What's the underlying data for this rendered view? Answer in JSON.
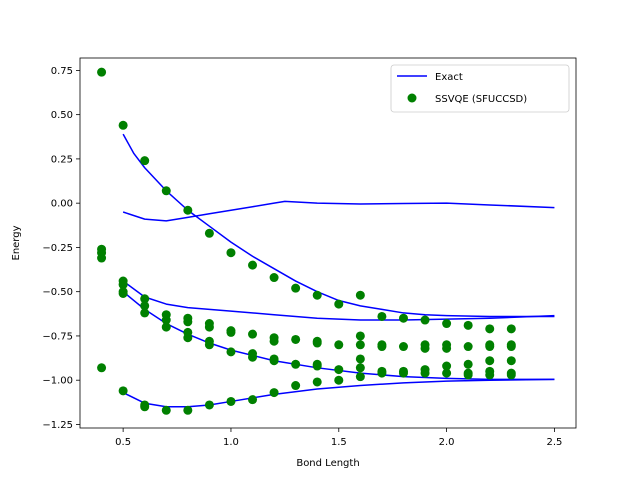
{
  "chart_data": {
    "type": "scatter",
    "xlabel": "Bond Length",
    "ylabel": "Energy",
    "xlim": [
      0.3,
      2.6
    ],
    "ylim": [
      -1.27,
      0.82
    ],
    "xticks": [
      0.5,
      1.0,
      1.5,
      2.0,
      2.5
    ],
    "xtick_labels": [
      "0.5",
      "1.0",
      "1.5",
      "2.0",
      "2.5"
    ],
    "yticks": [
      0.75,
      0.5,
      0.25,
      0.0,
      -0.25,
      -0.5,
      -0.75,
      -1.0,
      -1.25
    ],
    "ytick_labels": [
      "0.75",
      "0.50",
      "0.25",
      "0.00",
      "−0.25",
      "−0.50",
      "−0.75",
      "−1.00",
      "−1.25"
    ],
    "grid": false,
    "legend": {
      "placement": "top-right",
      "entries": [
        {
          "label": "Exact",
          "kind": "line",
          "color": "#0000ff"
        },
        {
          "label": "SSVQE (SFUCCSD)",
          "kind": "marker",
          "color": "#008000"
        }
      ]
    },
    "series": [
      {
        "name": "Exact",
        "kind": "line",
        "color": "#0000ff",
        "curves": [
          [
            [
              0.5,
              0.39
            ],
            [
              0.55,
              0.28
            ],
            [
              0.6,
              0.2
            ],
            [
              0.7,
              0.07
            ],
            [
              0.8,
              -0.04
            ],
            [
              0.9,
              -0.13
            ],
            [
              1.0,
              -0.22
            ],
            [
              1.1,
              -0.3
            ],
            [
              1.2,
              -0.37
            ],
            [
              1.3,
              -0.44
            ],
            [
              1.4,
              -0.5
            ],
            [
              1.5,
              -0.55
            ],
            [
              1.6,
              -0.58
            ],
            [
              1.7,
              -0.6
            ],
            [
              1.8,
              -0.62
            ],
            [
              1.9,
              -0.63
            ],
            [
              2.0,
              -0.635
            ],
            [
              2.2,
              -0.64
            ],
            [
              2.5,
              -0.64
            ]
          ],
          [
            [
              0.5,
              -0.05
            ],
            [
              0.6,
              -0.09
            ],
            [
              0.7,
              -0.1
            ],
            [
              0.8,
              -0.08
            ],
            [
              0.9,
              -0.06
            ],
            [
              1.0,
              -0.04
            ],
            [
              1.1,
              -0.02
            ],
            [
              1.2,
              0.0
            ],
            [
              1.25,
              0.01
            ],
            [
              1.4,
              0.0
            ],
            [
              1.6,
              -0.005
            ],
            [
              1.8,
              -0.002
            ],
            [
              2.0,
              0.0
            ],
            [
              2.2,
              -0.01
            ],
            [
              2.5,
              -0.025
            ]
          ],
          [
            [
              0.5,
              -0.44
            ],
            [
              0.6,
              -0.53
            ],
            [
              0.7,
              -0.57
            ],
            [
              0.8,
              -0.59
            ],
            [
              0.9,
              -0.6
            ],
            [
              1.0,
              -0.61
            ],
            [
              1.2,
              -0.63
            ],
            [
              1.4,
              -0.65
            ],
            [
              1.6,
              -0.66
            ],
            [
              1.8,
              -0.66
            ],
            [
              2.0,
              -0.655
            ],
            [
              2.2,
              -0.65
            ],
            [
              2.5,
              -0.635
            ]
          ],
          [
            [
              0.5,
              -0.5
            ],
            [
              0.55,
              -0.55
            ],
            [
              0.6,
              -0.6
            ],
            [
              0.7,
              -0.68
            ],
            [
              0.8,
              -0.74
            ],
            [
              0.9,
              -0.79
            ],
            [
              1.0,
              -0.83
            ],
            [
              1.2,
              -0.89
            ],
            [
              1.4,
              -0.93
            ],
            [
              1.6,
              -0.96
            ],
            [
              1.8,
              -0.98
            ],
            [
              2.0,
              -0.99
            ],
            [
              2.2,
              -0.995
            ],
            [
              2.5,
              -0.995
            ]
          ],
          [
            [
              0.5,
              -1.07
            ],
            [
              0.6,
              -1.13
            ],
            [
              0.7,
              -1.15
            ],
            [
              0.8,
              -1.15
            ],
            [
              0.9,
              -1.14
            ],
            [
              1.0,
              -1.12
            ],
            [
              1.2,
              -1.08
            ],
            [
              1.4,
              -1.05
            ],
            [
              1.6,
              -1.03
            ],
            [
              1.8,
              -1.015
            ],
            [
              2.0,
              -1.005
            ],
            [
              2.2,
              -1.0
            ],
            [
              2.5,
              -0.995
            ]
          ]
        ]
      },
      {
        "name": "SSVQE (SFUCCSD)",
        "kind": "scatter",
        "color": "#008000",
        "points": [
          [
            0.4,
            0.74
          ],
          [
            0.4,
            -0.26
          ],
          [
            0.4,
            -0.28
          ],
          [
            0.4,
            -0.31
          ],
          [
            0.4,
            -0.93
          ],
          [
            0.5,
            0.44
          ],
          [
            0.5,
            -0.44
          ],
          [
            0.5,
            -0.46
          ],
          [
            0.5,
            -0.5
          ],
          [
            0.5,
            -0.51
          ],
          [
            0.5,
            -1.06
          ],
          [
            0.6,
            0.24
          ],
          [
            0.6,
            -0.54
          ],
          [
            0.6,
            -0.58
          ],
          [
            0.6,
            -0.62
          ],
          [
            0.6,
            -1.14
          ],
          [
            0.6,
            -1.15
          ],
          [
            0.7,
            0.07
          ],
          [
            0.7,
            -0.63
          ],
          [
            0.7,
            -0.66
          ],
          [
            0.7,
            -0.7
          ],
          [
            0.7,
            -1.17
          ],
          [
            0.8,
            -0.04
          ],
          [
            0.8,
            -0.65
          ],
          [
            0.8,
            -0.67
          ],
          [
            0.8,
            -0.73
          ],
          [
            0.8,
            -0.76
          ],
          [
            0.8,
            -1.17
          ],
          [
            0.9,
            -0.17
          ],
          [
            0.9,
            -0.68
          ],
          [
            0.9,
            -0.7
          ],
          [
            0.9,
            -0.78
          ],
          [
            0.9,
            -0.8
          ],
          [
            0.9,
            -1.14
          ],
          [
            1.0,
            -0.28
          ],
          [
            1.0,
            -0.72
          ],
          [
            1.0,
            -0.73
          ],
          [
            1.0,
            -0.84
          ],
          [
            1.0,
            -1.12
          ],
          [
            1.1,
            -0.35
          ],
          [
            1.1,
            -0.74
          ],
          [
            1.1,
            -0.85
          ],
          [
            1.1,
            -0.87
          ],
          [
            1.1,
            -1.11
          ],
          [
            1.2,
            -0.42
          ],
          [
            1.2,
            -0.76
          ],
          [
            1.2,
            -0.78
          ],
          [
            1.2,
            -0.88
          ],
          [
            1.2,
            -0.89
          ],
          [
            1.2,
            -1.07
          ],
          [
            1.3,
            -0.48
          ],
          [
            1.3,
            -0.77
          ],
          [
            1.3,
            -0.91
          ],
          [
            1.3,
            -1.03
          ],
          [
            1.4,
            -0.52
          ],
          [
            1.4,
            -0.78
          ],
          [
            1.4,
            -0.79
          ],
          [
            1.4,
            -0.91
          ],
          [
            1.4,
            -0.92
          ],
          [
            1.4,
            -1.01
          ],
          [
            1.5,
            -0.57
          ],
          [
            1.5,
            -0.8
          ],
          [
            1.5,
            -0.94
          ],
          [
            1.5,
            -1.0
          ],
          [
            1.6,
            -0.52
          ],
          [
            1.6,
            -0.75
          ],
          [
            1.6,
            -0.8
          ],
          [
            1.6,
            -0.88
          ],
          [
            1.6,
            -0.93
          ],
          [
            1.6,
            -0.98
          ],
          [
            1.7,
            -0.64
          ],
          [
            1.7,
            -0.8
          ],
          [
            1.7,
            -0.81
          ],
          [
            1.7,
            -0.95
          ],
          [
            1.7,
            -0.96
          ],
          [
            1.8,
            -0.65
          ],
          [
            1.8,
            -0.81
          ],
          [
            1.8,
            -0.95
          ],
          [
            1.8,
            -0.96
          ],
          [
            1.9,
            -0.66
          ],
          [
            1.9,
            -0.8
          ],
          [
            1.9,
            -0.82
          ],
          [
            1.9,
            -0.94
          ],
          [
            1.9,
            -0.96
          ],
          [
            2.0,
            -0.68
          ],
          [
            2.0,
            -0.8
          ],
          [
            2.0,
            -0.82
          ],
          [
            2.0,
            -0.92
          ],
          [
            2.0,
            -0.96
          ],
          [
            2.1,
            -0.69
          ],
          [
            2.1,
            -0.81
          ],
          [
            2.1,
            -0.91
          ],
          [
            2.1,
            -0.96
          ],
          [
            2.1,
            -0.97
          ],
          [
            2.2,
            -0.71
          ],
          [
            2.2,
            -0.8
          ],
          [
            2.2,
            -0.81
          ],
          [
            2.2,
            -0.89
          ],
          [
            2.2,
            -0.95
          ],
          [
            2.2,
            -0.97
          ],
          [
            2.3,
            -0.71
          ],
          [
            2.3,
            -0.8
          ],
          [
            2.3,
            -0.81
          ],
          [
            2.3,
            -0.89
          ],
          [
            2.3,
            -0.96
          ],
          [
            2.3,
            -0.97
          ]
        ]
      }
    ]
  }
}
